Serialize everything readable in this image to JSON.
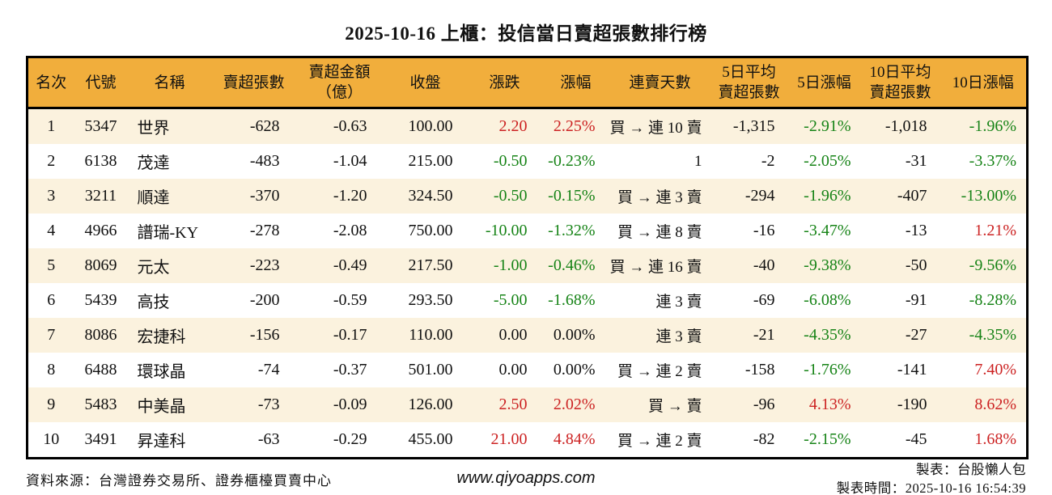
{
  "title": "2025-10-16 上櫃：投信當日賣超張數排行榜",
  "table": {
    "headers": [
      "名次",
      "代號",
      "名稱",
      "賣超張數",
      "賣超金額\n（億）",
      "收盤",
      "漲跌",
      "漲幅",
      "連賣天數",
      "5日平均\n賣超張數",
      "5日漲幅",
      "10日平均\n賣超張數",
      "10日漲幅"
    ],
    "rows": [
      {
        "rank": "1",
        "code": "5347",
        "name": "世界",
        "sell_vol": "-628",
        "sell_amt": "-0.63",
        "close": "100.00",
        "chg": "2.20",
        "chg_pct": "2.25%",
        "streak": "買 → 連 10 賣",
        "avg5": "-1,315",
        "pct5": "-2.91%",
        "avg10": "-1,018",
        "pct10": "-1.96%"
      },
      {
        "rank": "2",
        "code": "6138",
        "name": "茂達",
        "sell_vol": "-483",
        "sell_amt": "-1.04",
        "close": "215.00",
        "chg": "-0.50",
        "chg_pct": "-0.23%",
        "streak": "1",
        "avg5": "-2",
        "pct5": "-2.05%",
        "avg10": "-31",
        "pct10": "-3.37%"
      },
      {
        "rank": "3",
        "code": "3211",
        "name": "順達",
        "sell_vol": "-370",
        "sell_amt": "-1.20",
        "close": "324.50",
        "chg": "-0.50",
        "chg_pct": "-0.15%",
        "streak": "買 → 連 3 賣",
        "avg5": "-294",
        "pct5": "-1.96%",
        "avg10": "-407",
        "pct10": "-13.00%"
      },
      {
        "rank": "4",
        "code": "4966",
        "name": "譜瑞-KY",
        "sell_vol": "-278",
        "sell_amt": "-2.08",
        "close": "750.00",
        "chg": "-10.00",
        "chg_pct": "-1.32%",
        "streak": "買 → 連 8 賣",
        "avg5": "-16",
        "pct5": "-3.47%",
        "avg10": "-13",
        "pct10": "1.21%"
      },
      {
        "rank": "5",
        "code": "8069",
        "name": "元太",
        "sell_vol": "-223",
        "sell_amt": "-0.49",
        "close": "217.50",
        "chg": "-1.00",
        "chg_pct": "-0.46%",
        "streak": "買 → 連 16 賣",
        "avg5": "-40",
        "pct5": "-9.38%",
        "avg10": "-50",
        "pct10": "-9.56%"
      },
      {
        "rank": "6",
        "code": "5439",
        "name": "高技",
        "sell_vol": "-200",
        "sell_amt": "-0.59",
        "close": "293.50",
        "chg": "-5.00",
        "chg_pct": "-1.68%",
        "streak": "連 3 賣",
        "avg5": "-69",
        "pct5": "-6.08%",
        "avg10": "-91",
        "pct10": "-8.28%"
      },
      {
        "rank": "7",
        "code": "8086",
        "name": "宏捷科",
        "sell_vol": "-156",
        "sell_amt": "-0.17",
        "close": "110.00",
        "chg": "0.00",
        "chg_pct": "0.00%",
        "streak": "連 3 賣",
        "avg5": "-21",
        "pct5": "-4.35%",
        "avg10": "-27",
        "pct10": "-4.35%"
      },
      {
        "rank": "8",
        "code": "6488",
        "name": "環球晶",
        "sell_vol": "-74",
        "sell_amt": "-0.37",
        "close": "501.00",
        "chg": "0.00",
        "chg_pct": "0.00%",
        "streak": "買 → 連 2 賣",
        "avg5": "-158",
        "pct5": "-1.76%",
        "avg10": "-141",
        "pct10": "7.40%"
      },
      {
        "rank": "9",
        "code": "5483",
        "name": "中美晶",
        "sell_vol": "-73",
        "sell_amt": "-0.09",
        "close": "126.00",
        "chg": "2.50",
        "chg_pct": "2.02%",
        "streak": "買 → 賣",
        "avg5": "-96",
        "pct5": "4.13%",
        "avg10": "-190",
        "pct10": "8.62%"
      },
      {
        "rank": "10",
        "code": "3491",
        "name": "昇達科",
        "sell_vol": "-63",
        "sell_amt": "-0.29",
        "close": "455.00",
        "chg": "21.00",
        "chg_pct": "4.84%",
        "streak": "買 → 連 2 賣",
        "avg5": "-82",
        "pct5": "-2.15%",
        "avg10": "-45",
        "pct10": "1.68%"
      }
    ]
  },
  "footer": {
    "source": "資料來源：台灣證券交易所、證券櫃檯買賣中心",
    "website": "www.qiyoapps.com",
    "maker": "製表：台股懶人包",
    "generated": "製表時間：2025-10-16 16:54:39"
  },
  "colors": {
    "header_bg": "#F1AE3C",
    "stripe_bg": "#FBF2DE",
    "up_red": "#CC2222",
    "down_green": "#168316",
    "border": "#000000",
    "text": "#111111"
  }
}
